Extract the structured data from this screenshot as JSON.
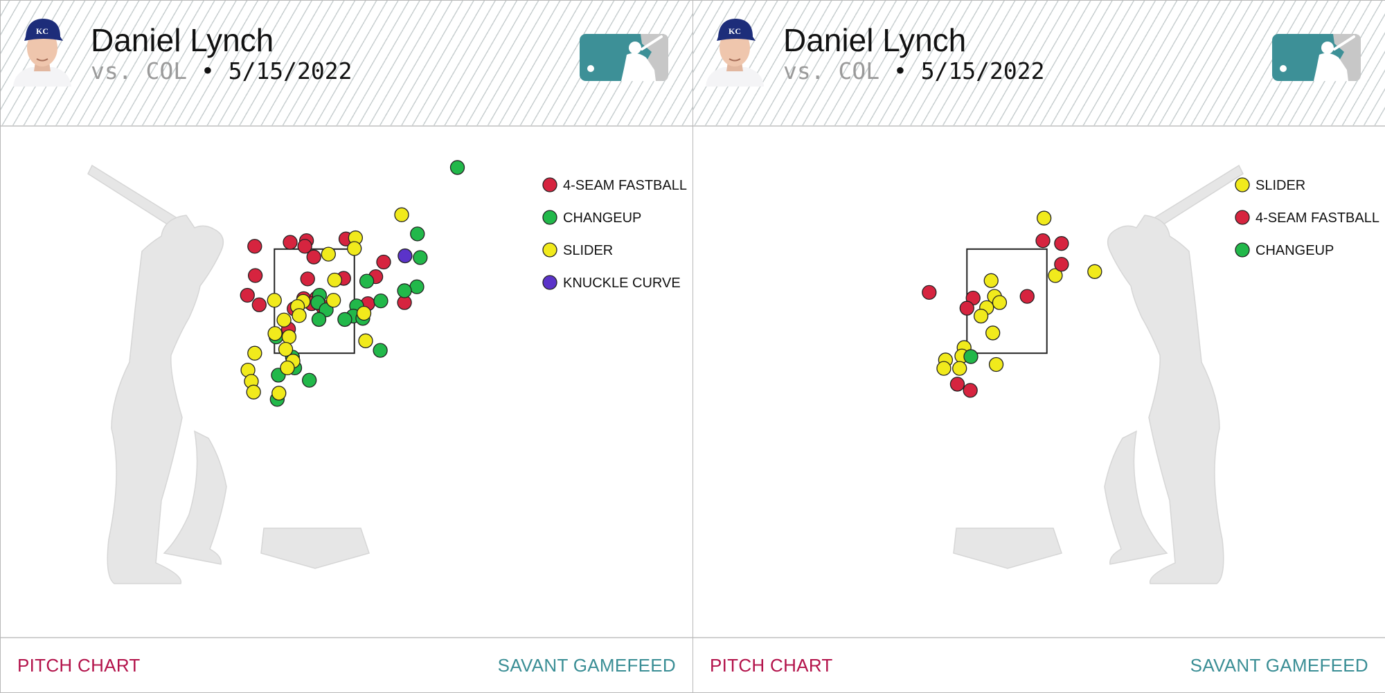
{
  "colors": {
    "4-SEAM FASTBALL": "#d6243f",
    "CHANGEUP": "#22b84a",
    "SLIDER": "#f1ea1c",
    "KNUCKLE CURVE": "#5b33c9",
    "link_left": "#b3124a",
    "link_right": "#3a8e95"
  },
  "panels": [
    {
      "header": {
        "player": "Daniel Lynch",
        "vs": "vs. COL",
        "separator": "•",
        "date": "5/15/2022"
      },
      "footer": {
        "left": "PITCH CHART",
        "right": "SAVANT GAMEFEED"
      },
      "chart_data": {
        "type": "scatter",
        "batter_side": "R",
        "legend": [
          "4-SEAM FASTBALL",
          "CHANGEUP",
          "SLIDER",
          "KNUCKLE CURVE"
        ],
        "legend_position": "top-right",
        "plate_x_range": [
          -2.5,
          2.5
        ],
        "plate_z_range": [
          -0.5,
          5.0
        ],
        "strike_zone": {
          "x": [
            -0.71,
            0.71
          ],
          "z": [
            1.6,
            3.45
          ]
        },
        "series": [
          {
            "name": "4-SEAM FASTBALL",
            "points": [
              [
                -1.06,
                3.5
              ],
              [
                -0.43,
                3.57
              ],
              [
                -0.14,
                3.6
              ],
              [
                -0.17,
                3.5
              ],
              [
                -0.01,
                3.31
              ],
              [
                0.56,
                3.63
              ],
              [
                1.23,
                3.22
              ],
              [
                -1.05,
                2.98
              ],
              [
                -0.12,
                2.92
              ],
              [
                0.52,
                2.93
              ],
              [
                1.09,
                2.96
              ],
              [
                -1.19,
                2.63
              ],
              [
                -0.98,
                2.46
              ],
              [
                -0.19,
                2.57
              ],
              [
                0.04,
                2.58
              ],
              [
                -0.05,
                2.48
              ],
              [
                0.15,
                2.42
              ],
              [
                0.95,
                2.48
              ],
              [
                -0.36,
                2.39
              ],
              [
                1.6,
                2.5
              ],
              [
                -0.46,
                2.03
              ]
            ]
          },
          {
            "name": "CHANGEUP",
            "points": [
              [
                2.54,
                4.9
              ],
              [
                1.83,
                3.72
              ],
              [
                1.88,
                3.3
              ],
              [
                0.93,
                2.88
              ],
              [
                1.82,
                2.78
              ],
              [
                1.6,
                2.71
              ],
              [
                0.09,
                2.63
              ],
              [
                1.18,
                2.53
              ],
              [
                0.06,
                2.5
              ],
              [
                0.75,
                2.44
              ],
              [
                0.21,
                2.37
              ],
              [
                0.69,
                2.26
              ],
              [
                0.86,
                2.22
              ],
              [
                0.54,
                2.2
              ],
              [
                0.08,
                2.2
              ],
              [
                -0.68,
                1.89
              ],
              [
                1.17,
                1.65
              ],
              [
                -0.39,
                1.53
              ],
              [
                -0.35,
                1.34
              ],
              [
                -0.64,
                1.21
              ],
              [
                -0.09,
                1.12
              ],
              [
                -0.66,
                0.78
              ]
            ]
          },
          {
            "name": "SLIDER",
            "points": [
              [
                1.55,
                4.06
              ],
              [
                0.73,
                3.65
              ],
              [
                0.71,
                3.46
              ],
              [
                0.25,
                3.36
              ],
              [
                0.36,
                2.9
              ],
              [
                -0.71,
                2.54
              ],
              [
                -0.2,
                2.52
              ],
              [
                0.34,
                2.54
              ],
              [
                -0.3,
                2.43
              ],
              [
                -0.27,
                2.27
              ],
              [
                -0.54,
                2.19
              ],
              [
                0.88,
                2.31
              ],
              [
                -0.7,
                1.95
              ],
              [
                -0.45,
                1.89
              ],
              [
                0.91,
                1.82
              ],
              [
                -0.51,
                1.67
              ],
              [
                -1.06,
                1.6
              ],
              [
                -0.38,
                1.46
              ],
              [
                -0.48,
                1.34
              ],
              [
                -1.18,
                1.3
              ],
              [
                -1.12,
                1.1
              ],
              [
                -1.08,
                0.91
              ],
              [
                -0.63,
                0.89
              ]
            ]
          },
          {
            "name": "KNUCKLE CURVE",
            "points": [
              [
                1.61,
                3.33
              ]
            ]
          }
        ]
      }
    },
    {
      "header": {
        "player": "Daniel Lynch",
        "vs": "vs. COL",
        "separator": "•",
        "date": "5/15/2022"
      },
      "footer": {
        "left": "PITCH CHART",
        "right": "SAVANT GAMEFEED"
      },
      "chart_data": {
        "type": "scatter",
        "batter_side": "L",
        "legend": [
          "SLIDER",
          "4-SEAM FASTBALL",
          "CHANGEUP"
        ],
        "legend_position": "top-right",
        "plate_x_range": [
          -2.5,
          2.5
        ],
        "plate_z_range": [
          -0.5,
          5.0
        ],
        "strike_zone": {
          "x": [
            -0.71,
            0.71
          ],
          "z": [
            1.6,
            3.45
          ]
        },
        "series": [
          {
            "name": "SLIDER",
            "points": [
              [
                0.66,
                4.0
              ],
              [
                0.86,
                2.98
              ],
              [
                1.56,
                3.05
              ],
              [
                -0.28,
                2.89
              ],
              [
                -0.22,
                2.61
              ],
              [
                -0.13,
                2.5
              ],
              [
                -0.36,
                2.41
              ],
              [
                -0.46,
                2.26
              ],
              [
                -0.25,
                1.96
              ],
              [
                -0.76,
                1.7
              ],
              [
                -0.8,
                1.55
              ],
              [
                -1.09,
                1.48
              ],
              [
                -1.12,
                1.33
              ],
              [
                -0.84,
                1.33
              ],
              [
                -0.19,
                1.4
              ]
            ]
          },
          {
            "name": "4-SEAM FASTBALL",
            "points": [
              [
                0.64,
                3.6
              ],
              [
                0.97,
                3.55
              ],
              [
                0.97,
                3.18
              ],
              [
                -1.38,
                2.68
              ],
              [
                -0.6,
                2.58
              ],
              [
                -0.71,
                2.4
              ],
              [
                0.36,
                2.61
              ],
              [
                -0.88,
                1.05
              ],
              [
                -0.65,
                0.94
              ]
            ]
          },
          {
            "name": "CHANGEUP",
            "points": [
              [
                -0.64,
                1.54
              ]
            ]
          }
        ]
      }
    }
  ]
}
